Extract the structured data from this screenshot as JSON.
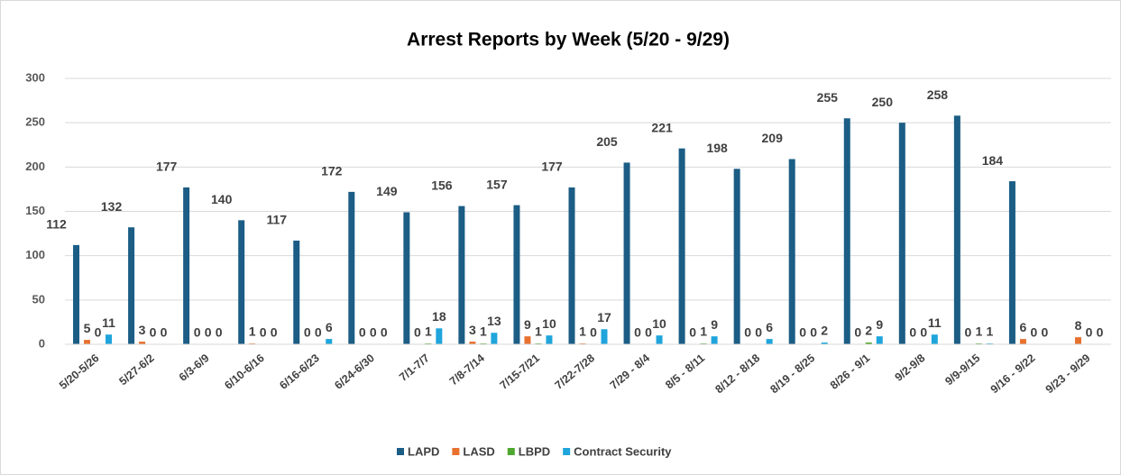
{
  "chart_data": {
    "type": "bar",
    "title": "Arrest  Reports by Week (5/20 - 9/29)",
    "categories": [
      "5/20-5/26",
      "5/27-6/2",
      "6/3-6/9",
      "6/10-6/16",
      "6/16-6/23",
      "6/24-6/30",
      "7/1-7/7",
      "7/8-7/14",
      "7/15-7/21",
      "7/22-7/28",
      "7/29 - 8/4",
      "8/5 - 8/11",
      "8/12 - 8/18",
      "8/19 - 8/25",
      "8/26 - 9/1",
      "9/2-9/8",
      "9/9-9/15",
      "9/16 - 9/22",
      "9/23 - 9/29"
    ],
    "series": [
      {
        "name": "LAPD",
        "color": "#1b5d85",
        "values": [
          112,
          132,
          177,
          140,
          117,
          172,
          149,
          156,
          157,
          177,
          205,
          221,
          198,
          209,
          255,
          250,
          258,
          184,
          null
        ]
      },
      {
        "name": "LASD",
        "color": "#e8712f",
        "values": [
          5,
          3,
          0,
          1,
          0,
          0,
          0,
          3,
          9,
          1,
          0,
          0,
          0,
          0,
          0,
          0,
          0,
          6,
          8
        ]
      },
      {
        "name": "LBPD",
        "color": "#4ea72e",
        "values": [
          0,
          0,
          0,
          0,
          0,
          0,
          1,
          1,
          1,
          0,
          0,
          1,
          0,
          0,
          2,
          0,
          1,
          0,
          0
        ]
      },
      {
        "name": "Contract Security",
        "color": "#1fa5dc",
        "values": [
          11,
          0,
          0,
          0,
          6,
          0,
          18,
          13,
          10,
          17,
          10,
          9,
          6,
          2,
          9,
          11,
          1,
          0,
          0
        ]
      }
    ],
    "ylim": [
      0,
      300
    ],
    "yticks": [
      0,
      50,
      100,
      150,
      200,
      250,
      300
    ],
    "grid": true,
    "legend": "bottom"
  }
}
